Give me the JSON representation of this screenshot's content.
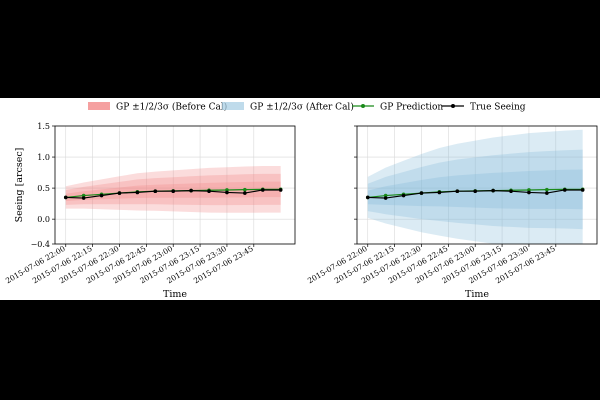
{
  "legend": {
    "items": [
      {
        "label": "GP ±1/2/3σ (Before Cal)",
        "kind": "band",
        "color": "#f28080"
      },
      {
        "label": "GP ±1/2/3σ (After Cal)",
        "kind": "band",
        "color": "#a9cfe4"
      },
      {
        "label": "GP Prediction",
        "kind": "line",
        "color": "#1a8a1a"
      },
      {
        "label": "True Seeing",
        "kind": "line",
        "color": "#000000"
      }
    ]
  },
  "chart_data": [
    {
      "type": "line",
      "panel": "before-cal",
      "ylabel": "Seeing [arcsec]",
      "xlabel": "Time",
      "ylim": [
        -0.4,
        1.5
      ],
      "yticks": [
        -0.4,
        0.0,
        0.5,
        1.0,
        1.5
      ],
      "ytick_labels": [
        "−0.4",
        "0.0",
        "0.5",
        "1.0",
        "1.5"
      ],
      "xlim": [
        -0.6,
        12.8
      ],
      "xticks": [
        0,
        1.5,
        3,
        4.5,
        6,
        7.5,
        9,
        10.5
      ],
      "xtick_labels": [
        "2015-07-06 22:00",
        "2015-07-06 22:15",
        "2015-07-06 22:30",
        "2015-07-06 22:45",
        "2015-07-06 23:00",
        "2015-07-06 23:15",
        "2015-07-06 23:30",
        "2015-07-06 23:45"
      ],
      "x": [
        0,
        1,
        2,
        3,
        4,
        5,
        6,
        7,
        8,
        9,
        10,
        11,
        12
      ],
      "band_color": "#f08080",
      "series": [
        {
          "name": "GP Prediction",
          "values": [
            0.35,
            0.38,
            0.4,
            0.42,
            0.44,
            0.45,
            0.455,
            0.46,
            0.465,
            0.47,
            0.475,
            0.48,
            0.48
          ]
        },
        {
          "name": "True Seeing",
          "values": [
            0.35,
            0.34,
            0.38,
            0.42,
            0.43,
            0.45,
            0.45,
            0.46,
            0.45,
            0.43,
            0.42,
            0.47,
            0.47
          ]
        }
      ],
      "sigma": [
        0.06,
        0.07,
        0.08,
        0.09,
        0.1,
        0.105,
        0.11,
        0.115,
        0.12,
        0.122,
        0.124,
        0.125,
        0.125
      ],
      "grid": true
    },
    {
      "type": "line",
      "panel": "after-cal",
      "ylabel": "",
      "xlabel": "Time",
      "ylim": [
        -0.4,
        1.5
      ],
      "yticks": [
        -0.4,
        0.0,
        0.5,
        1.0,
        1.5
      ],
      "ytick_labels": [],
      "xlim": [
        -0.6,
        12.8
      ],
      "xticks": [
        0,
        1.5,
        3,
        4.5,
        6,
        7.5,
        9,
        10.5
      ],
      "xtick_labels": [
        "2015-07-06 22:00",
        "2015-07-06 22:15",
        "2015-07-06 22:30",
        "2015-07-06 22:45",
        "2015-07-06 23:00",
        "2015-07-06 23:15",
        "2015-07-06 23:30",
        "2015-07-06 23:45"
      ],
      "x": [
        0,
        1,
        2,
        3,
        4,
        5,
        6,
        7,
        8,
        9,
        10,
        11,
        12
      ],
      "band_color": "#7fb8d9",
      "series": [
        {
          "name": "GP Prediction",
          "values": [
            0.35,
            0.38,
            0.4,
            0.42,
            0.44,
            0.45,
            0.455,
            0.46,
            0.465,
            0.47,
            0.475,
            0.48,
            0.48
          ]
        },
        {
          "name": "True Seeing",
          "values": [
            0.35,
            0.34,
            0.38,
            0.42,
            0.43,
            0.45,
            0.45,
            0.46,
            0.45,
            0.43,
            0.42,
            0.47,
            0.47
          ]
        }
      ],
      "sigma": [
        0.11,
        0.15,
        0.18,
        0.21,
        0.235,
        0.255,
        0.27,
        0.285,
        0.295,
        0.305,
        0.31,
        0.315,
        0.32
      ],
      "grid": true
    }
  ]
}
